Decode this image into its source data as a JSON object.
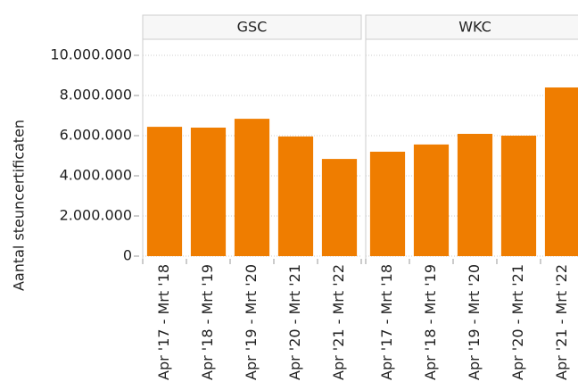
{
  "chart_data": [
    {
      "type": "bar",
      "title": "GSC",
      "ylabel": "Aantal steuncertificaten",
      "categories": [
        "Apr '17 - Mrt '18",
        "Apr '18 - Mrt '19",
        "Apr '19 - Mrt '20",
        "Apr '20 - Mrt '21",
        "Apr '21 - Mrt '22"
      ],
      "values": [
        6440000,
        6400000,
        6840000,
        5960000,
        4840000
      ],
      "color": "#ef7d00",
      "ylim": [
        0,
        10800000
      ],
      "yticks": [
        0,
        {
          "value": 2000000,
          "label": "2.000.000"
        },
        {
          "value": 4000000,
          "label": "4.000.000"
        },
        {
          "value": 6000000,
          "label": "6.000.000"
        },
        {
          "value": 8000000,
          "label": "8.000.000"
        },
        {
          "value": 10000000,
          "label": "10.000.000"
        }
      ],
      "grid": true
    },
    {
      "type": "bar",
      "title": "WKC",
      "categories": [
        "Apr '17 - Mrt '18",
        "Apr '18 - Mrt '19",
        "Apr '19 - Mrt '20",
        "Apr '20 - Mrt '21",
        "Apr '21 - Mrt '22"
      ],
      "values": [
        5200000,
        5560000,
        6090000,
        6000000,
        8400000
      ],
      "color": "#ef7d00",
      "ylim": [
        0,
        10800000
      ]
    }
  ]
}
